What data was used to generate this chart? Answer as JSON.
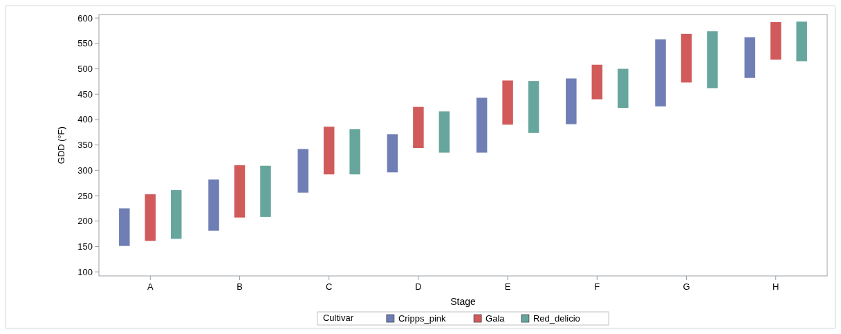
{
  "chart_data": {
    "type": "bar",
    "xlabel": "Stage",
    "ylabel": "GDD (°F)",
    "legend_title": "Cultivar",
    "legend": "bottom",
    "grid": false,
    "categories": [
      "A",
      "B",
      "C",
      "D",
      "E",
      "F",
      "G",
      "H"
    ],
    "ylim": [
      92,
      607
    ],
    "yticks": [
      100,
      150,
      200,
      250,
      300,
      350,
      400,
      450,
      500,
      550,
      600
    ],
    "series": [
      {
        "name": "Cripps_pink",
        "color": "#6f7fb5",
        "base": [
          151,
          181,
          256,
          296,
          335,
          391,
          426,
          482
        ],
        "values": [
          74,
          101,
          86,
          75,
          108,
          90,
          132,
          80
        ]
      },
      {
        "name": "Gala",
        "color": "#d15b5b",
        "base": [
          161,
          207,
          292,
          344,
          390,
          440,
          473,
          518
        ],
        "values": [
          92,
          103,
          94,
          81,
          87,
          68,
          96,
          74
        ]
      },
      {
        "name": "Red_delicio",
        "color": "#66a69d",
        "base": [
          165,
          208,
          292,
          335,
          374,
          423,
          462,
          515
        ],
        "values": [
          96,
          101,
          89,
          81,
          102,
          77,
          112,
          78
        ]
      }
    ]
  }
}
